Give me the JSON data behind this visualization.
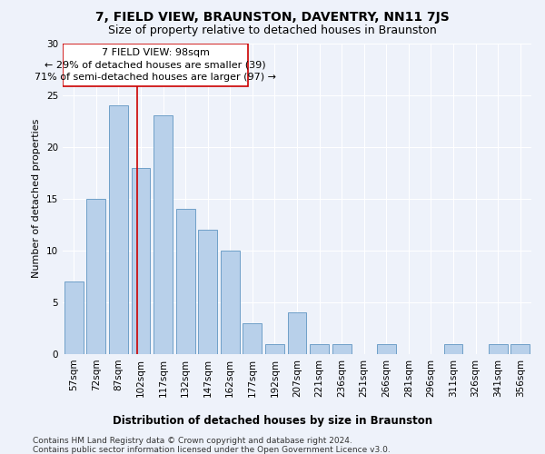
{
  "title": "7, FIELD VIEW, BRAUNSTON, DAVENTRY, NN11 7JS",
  "subtitle": "Size of property relative to detached houses in Braunston",
  "xlabel": "Distribution of detached houses by size in Braunston",
  "ylabel": "Number of detached properties",
  "categories": [
    "57sqm",
    "72sqm",
    "87sqm",
    "102sqm",
    "117sqm",
    "132sqm",
    "147sqm",
    "162sqm",
    "177sqm",
    "192sqm",
    "207sqm",
    "221sqm",
    "236sqm",
    "251sqm",
    "266sqm",
    "281sqm",
    "296sqm",
    "311sqm",
    "326sqm",
    "341sqm",
    "356sqm"
  ],
  "values": [
    7,
    15,
    24,
    18,
    23,
    14,
    12,
    10,
    3,
    1,
    4,
    1,
    1,
    0,
    1,
    0,
    0,
    1,
    0,
    1,
    1
  ],
  "bar_color": "#b8d0ea",
  "bar_edge_color": "#6fa0c8",
  "ylim": [
    0,
    30
  ],
  "yticks": [
    0,
    5,
    10,
    15,
    20,
    25,
    30
  ],
  "vline_x": 2.85,
  "annotation_line1": "7 FIELD VIEW: 98sqm",
  "annotation_line2": "← 29% of detached houses are smaller (39)",
  "annotation_line3": "71% of semi-detached houses are larger (97) →",
  "footer_line1": "Contains HM Land Registry data © Crown copyright and database right 2024.",
  "footer_line2": "Contains public sector information licensed under the Open Government Licence v3.0.",
  "bg_color": "#eef2fa",
  "plot_bg_color": "#eef2fa",
  "grid_color": "#ffffff",
  "vline_color": "#cc0000",
  "title_fontsize": 10,
  "subtitle_fontsize": 9,
  "ylabel_fontsize": 8,
  "xlabel_fontsize": 8.5,
  "tick_fontsize": 7.5,
  "annotation_fontsize": 8,
  "footer_fontsize": 6.5
}
